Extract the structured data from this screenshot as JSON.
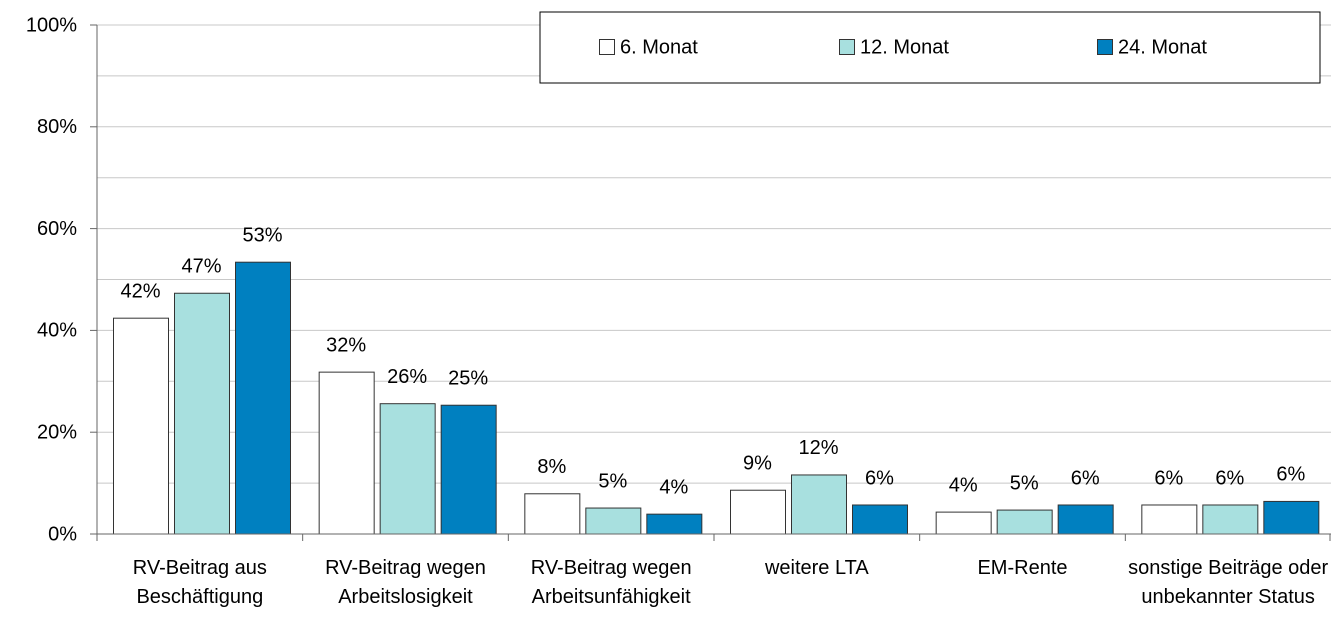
{
  "chart_data": {
    "type": "bar",
    "categories": [
      "RV-Beitrag aus Beschäftigung",
      "RV-Beitrag wegen Arbeitslosigkeit",
      "RV-Beitrag wegen Arbeitsunfähigkeit",
      "weitere LTA",
      "EM-Rente",
      "sonstige Beiträge oder unbekannter Status"
    ],
    "series": [
      {
        "name": "6. Monat",
        "color": "#ffffff",
        "values": [
          42.4,
          31.8,
          7.9,
          8.6,
          4.3,
          5.7
        ],
        "value_labels": [
          "42%",
          "32%",
          "8%",
          "9%",
          "4%",
          "6%"
        ]
      },
      {
        "name": "12. Monat",
        "color": "#a8e0df",
        "values": [
          47.3,
          25.6,
          5.1,
          11.6,
          4.7,
          5.7
        ],
        "value_labels": [
          "47%",
          "26%",
          "5%",
          "12%",
          "5%",
          "6%"
        ]
      },
      {
        "name": "24. Monat",
        "color": "#0080c0",
        "values": [
          53.4,
          25.3,
          3.9,
          5.7,
          5.7,
          6.4
        ],
        "value_labels": [
          "53%",
          "25%",
          "4%",
          "6%",
          "6%",
          "6%"
        ]
      }
    ],
    "ylim": [
      0,
      100
    ],
    "yticks": [
      {
        "value": 0,
        "label": "0%"
      },
      {
        "value": 20,
        "label": "20%"
      },
      {
        "value": 40,
        "label": "40%"
      },
      {
        "value": 60,
        "label": "60%"
      },
      {
        "value": 80,
        "label": "80%"
      },
      {
        "value": 100,
        "label": "100%"
      }
    ],
    "y_minor_ticks": [
      10,
      30,
      50,
      70,
      90
    ],
    "grid": true,
    "legend": "top-right"
  }
}
